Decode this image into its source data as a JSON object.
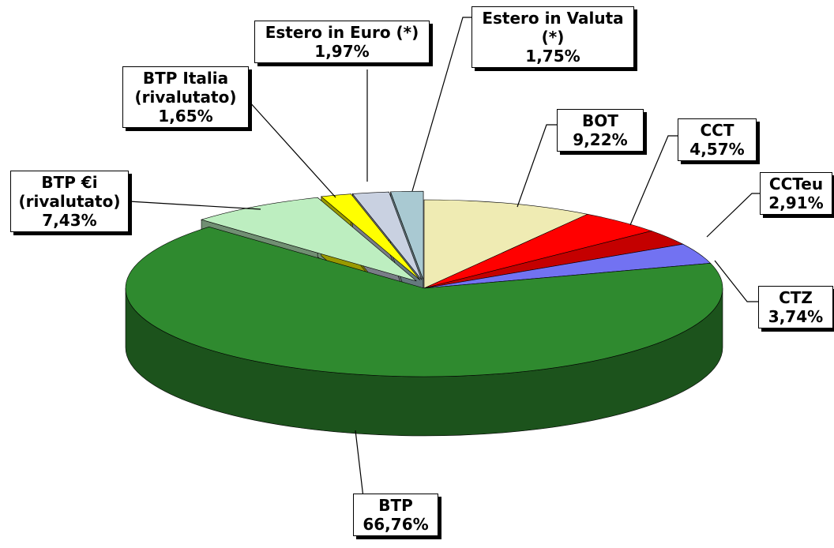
{
  "chart_data": {
    "type": "pie",
    "categories": [
      "BOT",
      "CCT",
      "CCTeu",
      "CTZ",
      "BTP",
      "BTP €i (rivalutato)",
      "BTP Italia (rivalutato)",
      "Estero in Euro (*)",
      "Estero in Valuta (*)"
    ],
    "values": [
      9.22,
      4.57,
      2.91,
      3.74,
      66.76,
      7.43,
      1.65,
      1.97,
      1.75
    ],
    "value_labels": [
      "9,22%",
      "4,57%",
      "2,91%",
      "3,74%",
      "66,76%",
      "7,43%",
      "1,65%",
      "1,97%",
      "1,75%"
    ],
    "colors": [
      "#efebb3",
      "#ff0000",
      "#c40000",
      "#7272f2",
      "#2f8a2f",
      "#bdeec0",
      "#ffff00",
      "#c9d1e1",
      "#a9c9d2"
    ]
  }
}
